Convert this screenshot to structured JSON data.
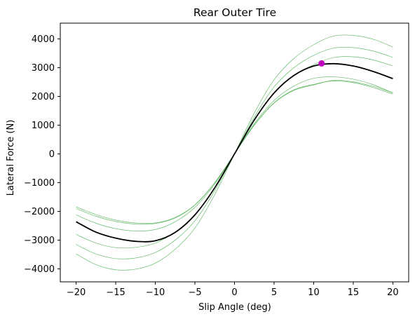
{
  "chart_data": {
    "type": "line",
    "title": "Rear Outer Tire",
    "xlabel": "Slip Angle (deg)",
    "ylabel": "Lateral Force (N)",
    "xlim": [
      -22,
      22
    ],
    "ylim": [
      -4450,
      4550
    ],
    "xticks": [
      -20,
      -15,
      -10,
      -5,
      0,
      5,
      10,
      15,
      20
    ],
    "xtick_labels": [
      "−20",
      "−15",
      "−10",
      "−5",
      "0",
      "5",
      "10",
      "15",
      "20"
    ],
    "yticks": [
      -4000,
      -3000,
      -2000,
      -1000,
      0,
      1000,
      2000,
      3000,
      4000
    ],
    "ytick_labels": [
      "−4000",
      "−3000",
      "−2000",
      "−1000",
      "0",
      "1000",
      "2000",
      "3000",
      "4000"
    ],
    "grid": false,
    "x": [
      -20,
      -17.5,
      -15,
      -12.5,
      -10,
      -7.5,
      -5,
      -2.5,
      0,
      2.5,
      5,
      7.5,
      10,
      12.5,
      15,
      17.5,
      20
    ],
    "colors": {
      "main": "#000000",
      "samples": "#4caf50",
      "marker": "#bf00bf"
    },
    "series": [
      {
        "role": "sample",
        "values": [
          -3480,
          -3850,
          -4030,
          -4010,
          -3800,
          -3320,
          -2580,
          -1420,
          0,
          1420,
          2580,
          3320,
          3800,
          4100,
          4120,
          3990,
          3720
        ]
      },
      {
        "role": "sample",
        "values": [
          -3150,
          -3480,
          -3640,
          -3620,
          -3430,
          -3000,
          -2330,
          -1280,
          0,
          1280,
          2330,
          3000,
          3430,
          3680,
          3700,
          3580,
          3360
        ]
      },
      {
        "role": "sample",
        "values": [
          -2800,
          -3100,
          -3260,
          -3250,
          -3100,
          -2720,
          -2120,
          -1170,
          0,
          1170,
          2120,
          2720,
          3100,
          3350,
          3380,
          3270,
          3060
        ]
      },
      {
        "role": "sample",
        "values": [
          -2120,
          -2410,
          -2600,
          -2680,
          -2630,
          -2360,
          -1860,
          -1050,
          0,
          1050,
          1860,
          2360,
          2630,
          2680,
          2600,
          2410,
          2120
        ]
      },
      {
        "role": "sample",
        "values": [
          -1900,
          -2170,
          -2350,
          -2440,
          -2420,
          -2230,
          -1780,
          -1010,
          0,
          1010,
          1780,
          2230,
          2420,
          2540,
          2480,
          2310,
          2080
        ]
      },
      {
        "role": "sample",
        "values": [
          -1840,
          -2110,
          -2300,
          -2400,
          -2400,
          -2210,
          -1770,
          -1000,
          0,
          1000,
          1770,
          2210,
          2400,
          2560,
          2510,
          2350,
          2130
        ]
      },
      {
        "role": "main",
        "values": [
          -2360,
          -2720,
          -2930,
          -3040,
          -3020,
          -2730,
          -2120,
          -1180,
          0,
          1180,
          2120,
          2730,
          3060,
          3140,
          3060,
          2870,
          2620
        ]
      }
    ],
    "peak_marker": {
      "x": 11,
      "y": 3150
    }
  }
}
